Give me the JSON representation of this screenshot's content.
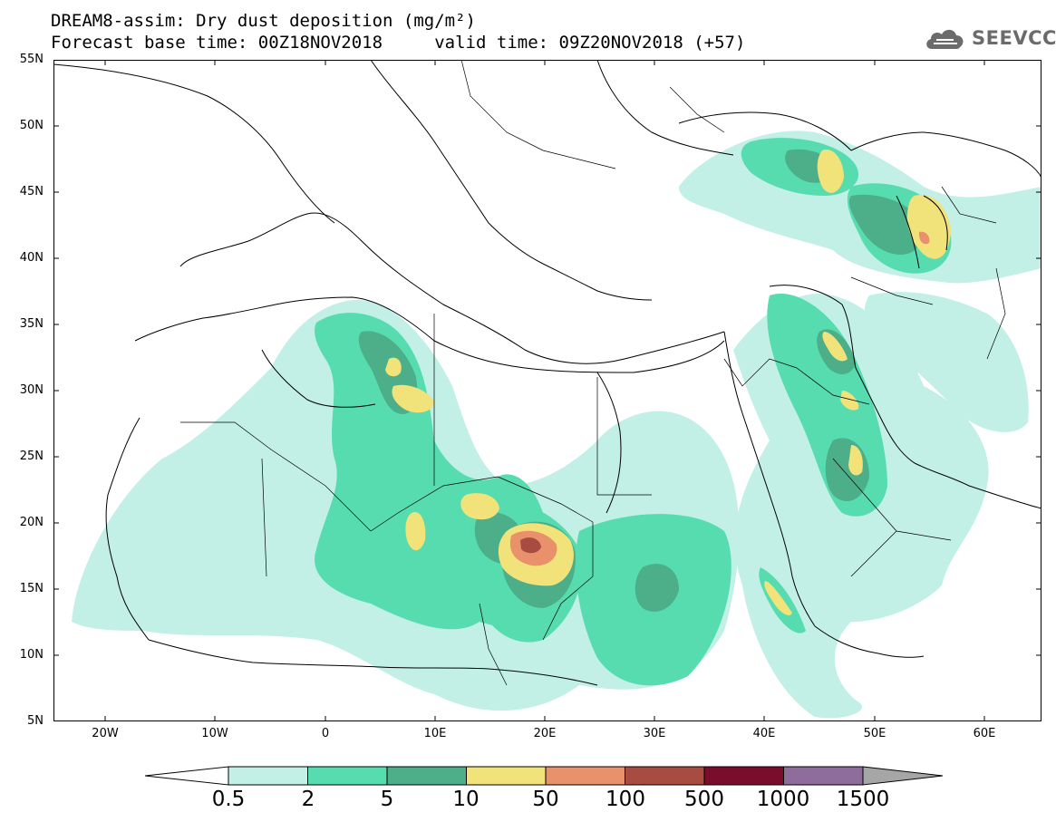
{
  "title_line1": "DREAM8-assim: Dry dust deposition (mg/m²)",
  "title_line2": "Forecast base time: 00Z18NOV2018     valid time: 09Z20NOV2018 (+57)",
  "logo_text": "SEEVCCC",
  "lat_labels": [
    "55N",
    "50N",
    "45N",
    "40N",
    "35N",
    "30N",
    "25N",
    "20N",
    "15N",
    "10N",
    "5N"
  ],
  "lon_labels": [
    "20W",
    "10W",
    "0",
    "10E",
    "20E",
    "30E",
    "40E",
    "50E",
    "60E"
  ],
  "colorbar": {
    "labels": [
      "0.5",
      "2",
      "5",
      "10",
      "50",
      "100",
      "500",
      "1000",
      "1500"
    ],
    "colors": [
      "#c2f0e6",
      "#57dcb0",
      "#4caf8a",
      "#f2e27a",
      "#e9916a",
      "#a84b40",
      "#7b0d2c",
      "#8e6d9c",
      "#a6a6a6"
    ]
  }
}
